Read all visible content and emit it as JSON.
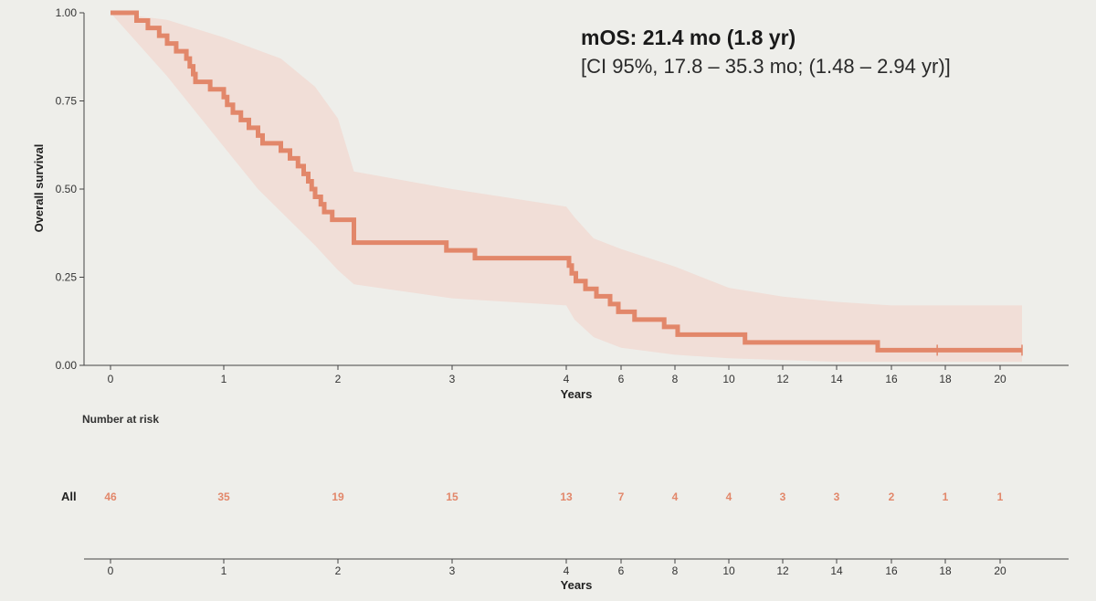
{
  "annotation": {
    "median_label": "mOS: 21.4 mo (1.8 yr)",
    "ci_label": "[CI 95%, 17.8 – 35.3 mo; (1.48 – 2.94 yr)]"
  },
  "colors": {
    "curve": "#e2876a",
    "band": "#f1dad3",
    "risk_text": "#e2876a",
    "axis": "#444444"
  },
  "chart_data": {
    "type": "line",
    "subtype": "kaplan-meier-step",
    "ylabel": "Overall survival",
    "xlabel": "Years",
    "ylim": [
      0,
      1
    ],
    "y_ticks": [
      "0.00",
      "0.25",
      "0.50",
      "0.75",
      "1.00"
    ],
    "x_ticks": [
      "0",
      "1",
      "2",
      "3",
      "4",
      "6",
      "8",
      "10",
      "12",
      "14",
      "16",
      "18",
      "20"
    ],
    "grid": false,
    "series": [
      {
        "survival_steps": [
          [
            0,
            1.0
          ],
          [
            0.23,
            0.978
          ],
          [
            0.33,
            0.957
          ],
          [
            0.43,
            0.935
          ],
          [
            0.5,
            0.913
          ],
          [
            0.58,
            0.891
          ],
          [
            0.67,
            0.87
          ],
          [
            0.7,
            0.848
          ],
          [
            0.73,
            0.826
          ],
          [
            0.75,
            0.804
          ],
          [
            0.88,
            0.783
          ],
          [
            1.0,
            0.761
          ],
          [
            1.03,
            0.739
          ],
          [
            1.08,
            0.717
          ],
          [
            1.15,
            0.696
          ],
          [
            1.22,
            0.674
          ],
          [
            1.3,
            0.652
          ],
          [
            1.34,
            0.63
          ],
          [
            1.5,
            0.609
          ],
          [
            1.58,
            0.587
          ],
          [
            1.65,
            0.565
          ],
          [
            1.7,
            0.543
          ],
          [
            1.74,
            0.522
          ],
          [
            1.77,
            0.5
          ],
          [
            1.8,
            0.478
          ],
          [
            1.85,
            0.457
          ],
          [
            1.88,
            0.435
          ],
          [
            1.95,
            0.413
          ],
          [
            2.14,
            0.348
          ],
          [
            2.95,
            0.326
          ],
          [
            3.2,
            0.304
          ],
          [
            4.1,
            0.283
          ],
          [
            4.2,
            0.261
          ],
          [
            4.35,
            0.239
          ],
          [
            4.7,
            0.217
          ],
          [
            5.1,
            0.196
          ],
          [
            5.6,
            0.174
          ],
          [
            5.9,
            0.152
          ],
          [
            6.5,
            0.13
          ],
          [
            7.6,
            0.109
          ],
          [
            8.1,
            0.087
          ],
          [
            10.6,
            0.065
          ],
          [
            15.5,
            0.043
          ],
          [
            20.8,
            0.043
          ]
        ],
        "ci_upper": [
          [
            0,
            1.0
          ],
          [
            0.5,
            0.98
          ],
          [
            1.0,
            0.93
          ],
          [
            1.5,
            0.87
          ],
          [
            1.8,
            0.79
          ],
          [
            2.0,
            0.7
          ],
          [
            2.14,
            0.55
          ],
          [
            3.0,
            0.5
          ],
          [
            4.0,
            0.45
          ],
          [
            4.3,
            0.42
          ],
          [
            5.0,
            0.36
          ],
          [
            6.0,
            0.33
          ],
          [
            8.0,
            0.28
          ],
          [
            10.0,
            0.22
          ],
          [
            12.0,
            0.195
          ],
          [
            14.0,
            0.18
          ],
          [
            16.0,
            0.17
          ],
          [
            20.8,
            0.17
          ]
        ],
        "ci_lower": [
          [
            0,
            1.0
          ],
          [
            0.5,
            0.82
          ],
          [
            1.0,
            0.62
          ],
          [
            1.3,
            0.5
          ],
          [
            1.8,
            0.34
          ],
          [
            2.0,
            0.27
          ],
          [
            2.14,
            0.23
          ],
          [
            3.0,
            0.19
          ],
          [
            4.0,
            0.17
          ],
          [
            4.3,
            0.13
          ],
          [
            5.0,
            0.08
          ],
          [
            6.0,
            0.05
          ],
          [
            8.0,
            0.03
          ],
          [
            10.0,
            0.02
          ],
          [
            14.0,
            0.01
          ],
          [
            20.8,
            0.01
          ]
        ],
        "censored": [
          [
            17.7,
            0.043
          ],
          [
            20.8,
            0.043
          ]
        ]
      }
    ]
  },
  "risk_table": {
    "title": "Number at risk",
    "row_label": "All",
    "xlabel": "Years",
    "x_ticks": [
      "0",
      "1",
      "2",
      "3",
      "4",
      "6",
      "8",
      "10",
      "12",
      "14",
      "16",
      "18",
      "20"
    ],
    "counts": [
      "46",
      "35",
      "19",
      "15",
      "13",
      "7",
      "4",
      "4",
      "3",
      "3",
      "2",
      "1",
      "1"
    ]
  }
}
